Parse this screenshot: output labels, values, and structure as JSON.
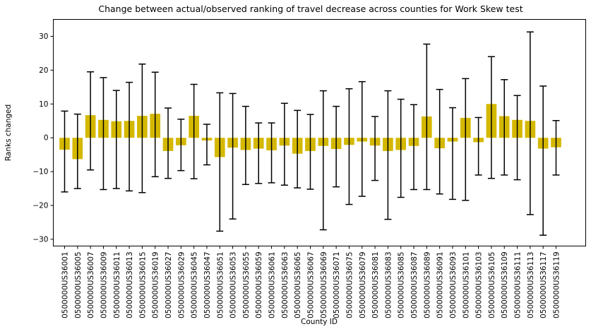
{
  "chart_data": {
    "type": "bar",
    "title": "Change between actual/observed ranking of travel decrease across counties for Work Skew test",
    "xlabel": "County ID",
    "ylabel": "Ranks changed",
    "ylim": [
      -32,
      35
    ],
    "yticks": [
      -30,
      -20,
      -10,
      0,
      10,
      20,
      30
    ],
    "ytick_labels": [
      "−30",
      "−20",
      "−10",
      "0",
      "10",
      "20",
      "30"
    ],
    "grid": false,
    "bar_color": "#D4B800",
    "errorbar_color": "#000000",
    "categories": [
      "0500000US36001",
      "0500000US36005",
      "0500000US36007",
      "0500000US36009",
      "0500000US36011",
      "0500000US36013",
      "0500000US36015",
      "0500000US36019",
      "0500000US36027",
      "0500000US36029",
      "0500000US36045",
      "0500000US36047",
      "0500000US36051",
      "0500000US36053",
      "0500000US36055",
      "0500000US36059",
      "0500000US36061",
      "0500000US36063",
      "0500000US36065",
      "0500000US36067",
      "0500000US36069",
      "0500000US36071",
      "0500000US36075",
      "0500000US36079",
      "0500000US36081",
      "0500000US36083",
      "0500000US36085",
      "0500000US36087",
      "0500000US36089",
      "0500000US36091",
      "0500000US36093",
      "0500000US36101",
      "0500000US36103",
      "0500000US36105",
      "0500000US36109",
      "0500000US36111",
      "0500000US36113",
      "0500000US36117",
      "0500000US36119"
    ],
    "values": [
      -3.5,
      -6.3,
      6.7,
      5.3,
      4.9,
      5.0,
      6.5,
      7.1,
      -3.9,
      -2.2,
      6.5,
      -0.8,
      -5.7,
      -2.9,
      -3.6,
      -3.2,
      -3.7,
      -2.3,
      -4.7,
      -3.9,
      -2.4,
      -3.3,
      -2.1,
      -1.1,
      -2.3,
      -3.9,
      -3.6,
      -2.4,
      6.3,
      -3.1,
      -1.1,
      5.9,
      -1.3,
      10.0,
      6.4,
      5.3,
      5.0,
      -3.2,
      -2.8
    ],
    "err_low": [
      -16.0,
      -15.0,
      -9.5,
      -15.3,
      -15.0,
      -15.7,
      -16.2,
      -11.5,
      -12.0,
      -9.7,
      -12.1,
      -8.0,
      -27.6,
      -24.0,
      -13.8,
      -13.5,
      -13.3,
      -14.0,
      -14.8,
      -15.2,
      -27.2,
      -14.5,
      -19.7,
      -17.3,
      -12.6,
      -24.1,
      -17.6,
      -15.3,
      -15.3,
      -16.6,
      -18.2,
      -18.5,
      -11.0,
      -12.0,
      -11.0,
      -12.4,
      -22.7,
      -28.8,
      -11.0
    ],
    "err_high": [
      7.9,
      7.0,
      19.5,
      17.8,
      14.0,
      16.4,
      21.8,
      19.4,
      8.8,
      5.5,
      15.8,
      4.0,
      13.3,
      13.1,
      9.3,
      4.4,
      4.4,
      10.2,
      8.1,
      6.9,
      13.9,
      9.3,
      14.5,
      16.6,
      6.3,
      13.9,
      11.4,
      9.8,
      27.7,
      14.3,
      8.9,
      17.5,
      6.0,
      24.0,
      17.2,
      12.5,
      31.3,
      15.3,
      5.1
    ]
  }
}
